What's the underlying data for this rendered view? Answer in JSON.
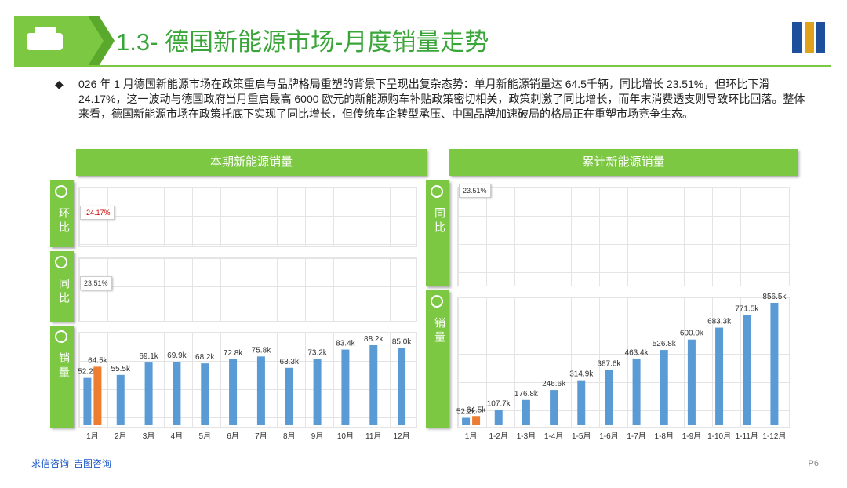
{
  "header": {
    "title": "1.3- 德国新能源市场-月度销量走势"
  },
  "body": "026 年 1 月德国新能源市场在政策重启与品牌格局重塑的背景下呈现出复杂态势：单月新能源销量达 64.5千辆，同比增长 23.51%，但环比下滑 24.17%，这一波动与德国政府当月重启最高 6000 欧元的新能源购车补贴政策密切相关，政策刺激了同比增长，而年末消费透支则导致环比回落。整体来看，德国新能源市场在政策托底下实现了同比增长，但传统车企转型承压、中国品牌加速破局的格局正在重塑市场竞争生态。",
  "footer": {
    "sources": [
      "求信咨询",
      "吉图咨询"
    ],
    "page": "P6"
  },
  "chart_data": [
    {
      "type": "bar",
      "title": "本期新能源销量",
      "panels": [
        {
          "label": "环比",
          "annotation": "-24.17%"
        },
        {
          "label": "同比",
          "annotation": "23.51%"
        },
        {
          "label": "销量"
        }
      ],
      "categories": [
        "1月",
        "2月",
        "3月",
        "4月",
        "5月",
        "6月",
        "7月",
        "8月",
        "9月",
        "10月",
        "11月",
        "12月"
      ],
      "series": [
        {
          "color": "#5b9bd5",
          "values": [
            52.2,
            55.5,
            69.1,
            69.9,
            68.2,
            72.8,
            75.8,
            63.3,
            73.2,
            83.4,
            88.2,
            85.0
          ],
          "value_labels": [
            "52.2k",
            "55.5k",
            "69.1k",
            "69.9k",
            "68.2k",
            "72.8k",
            "75.8k",
            "63.3k",
            "73.2k",
            "83.4k",
            "88.2k",
            "85.0k"
          ]
        },
        {
          "color": "#ed7d31",
          "values": [
            64.5,
            null,
            null,
            null,
            null,
            null,
            null,
            null,
            null,
            null,
            null,
            null
          ],
          "value_labels": [
            "64.5k",
            null,
            null,
            null,
            null,
            null,
            null,
            null,
            null,
            null,
            null,
            null
          ]
        }
      ]
    },
    {
      "type": "bar",
      "title": "累计新能源销量",
      "panels": [
        {
          "label": "同比",
          "annotation": "23.51%"
        },
        {
          "label": "销量"
        }
      ],
      "categories": [
        "1月",
        "1-2月",
        "1-3月",
        "1-4月",
        "1-5月",
        "1-6月",
        "1-7月",
        "1-8月",
        "1-9月",
        "1-10月",
        "1-11月",
        "1-12月"
      ],
      "series": [
        {
          "color": "#5b9bd5",
          "values": [
            52.2,
            107.7,
            176.8,
            246.6,
            314.9,
            387.6,
            463.4,
            526.8,
            600.0,
            683.3,
            771.5,
            856.5
          ],
          "value_labels": [
            "52.2k",
            "107.7k",
            "176.8k",
            "246.6k",
            "314.9k",
            "387.6k",
            "463.4k",
            "526.8k",
            "600.0k",
            "683.3k",
            "771.5k",
            "856.5k"
          ]
        },
        {
          "color": "#ed7d31",
          "values": [
            64.5,
            null,
            null,
            null,
            null,
            null,
            null,
            null,
            null,
            null,
            null,
            null
          ],
          "value_labels": [
            "64.5k",
            null,
            null,
            null,
            null,
            null,
            null,
            null,
            null,
            null,
            null,
            null
          ]
        }
      ]
    }
  ]
}
